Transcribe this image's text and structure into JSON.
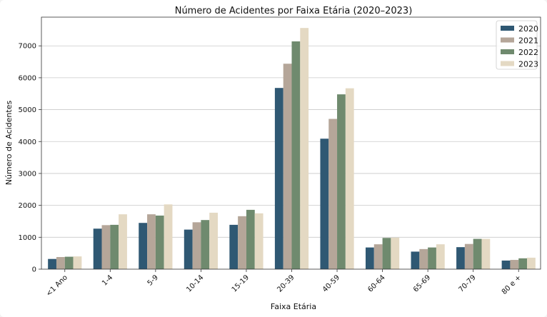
{
  "chart_data": {
    "type": "bar",
    "title": "Número de Acidentes por Faixa Etária (2020–2023)",
    "xlabel": "Faixa Etária",
    "ylabel": "Número de Acidentes",
    "ylim": [
      0,
      7900
    ],
    "yticks": [
      0,
      1000,
      2000,
      3000,
      4000,
      5000,
      6000,
      7000
    ],
    "grid": "horizontal",
    "legend_position": "top-right",
    "categories": [
      "<1 Ano",
      "1-4",
      "5-9",
      "10-14",
      "15-19",
      "20-39",
      "40-59",
      "60-64",
      "65-69",
      "70-79",
      "80 e +"
    ],
    "series": [
      {
        "name": "2020",
        "color": "#2f5873",
        "values": [
          320,
          1270,
          1450,
          1240,
          1390,
          5680,
          4090,
          680,
          550,
          690,
          270
        ]
      },
      {
        "name": "2021",
        "color": "#b5a699",
        "values": [
          380,
          1380,
          1720,
          1470,
          1660,
          6440,
          4710,
          780,
          630,
          790,
          290
        ]
      },
      {
        "name": "2022",
        "color": "#6f8a6e",
        "values": [
          390,
          1390,
          1680,
          1540,
          1860,
          7140,
          5480,
          980,
          680,
          950,
          340
        ]
      },
      {
        "name": "2023",
        "color": "#e4d9c3",
        "values": [
          400,
          1720,
          2030,
          1770,
          1750,
          7560,
          5670,
          990,
          780,
          950,
          360
        ]
      }
    ]
  }
}
